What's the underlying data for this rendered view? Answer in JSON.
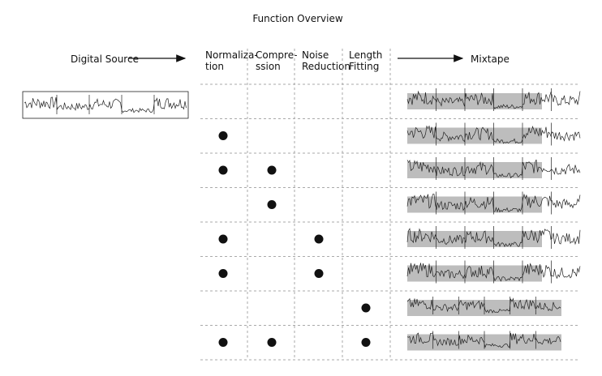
{
  "title": "Function Overview",
  "source_label": "Digital Source",
  "output_label": "Mixtape",
  "columns": [
    {
      "lines": [
        "Normaliza-",
        "tion"
      ]
    },
    {
      "lines": [
        "Compre-",
        "ssion"
      ]
    },
    {
      "lines": [
        "Noise",
        "Reduction"
      ]
    },
    {
      "lines": [
        "Length",
        "Fitting"
      ]
    }
  ],
  "rows": [
    [
      false,
      false,
      false,
      false
    ],
    [
      true,
      false,
      false,
      false
    ],
    [
      true,
      true,
      false,
      false
    ],
    [
      false,
      true,
      false,
      false
    ],
    [
      true,
      false,
      true,
      false
    ],
    [
      true,
      false,
      true,
      false
    ],
    [
      false,
      false,
      false,
      true
    ],
    [
      true,
      true,
      false,
      true
    ]
  ]
}
